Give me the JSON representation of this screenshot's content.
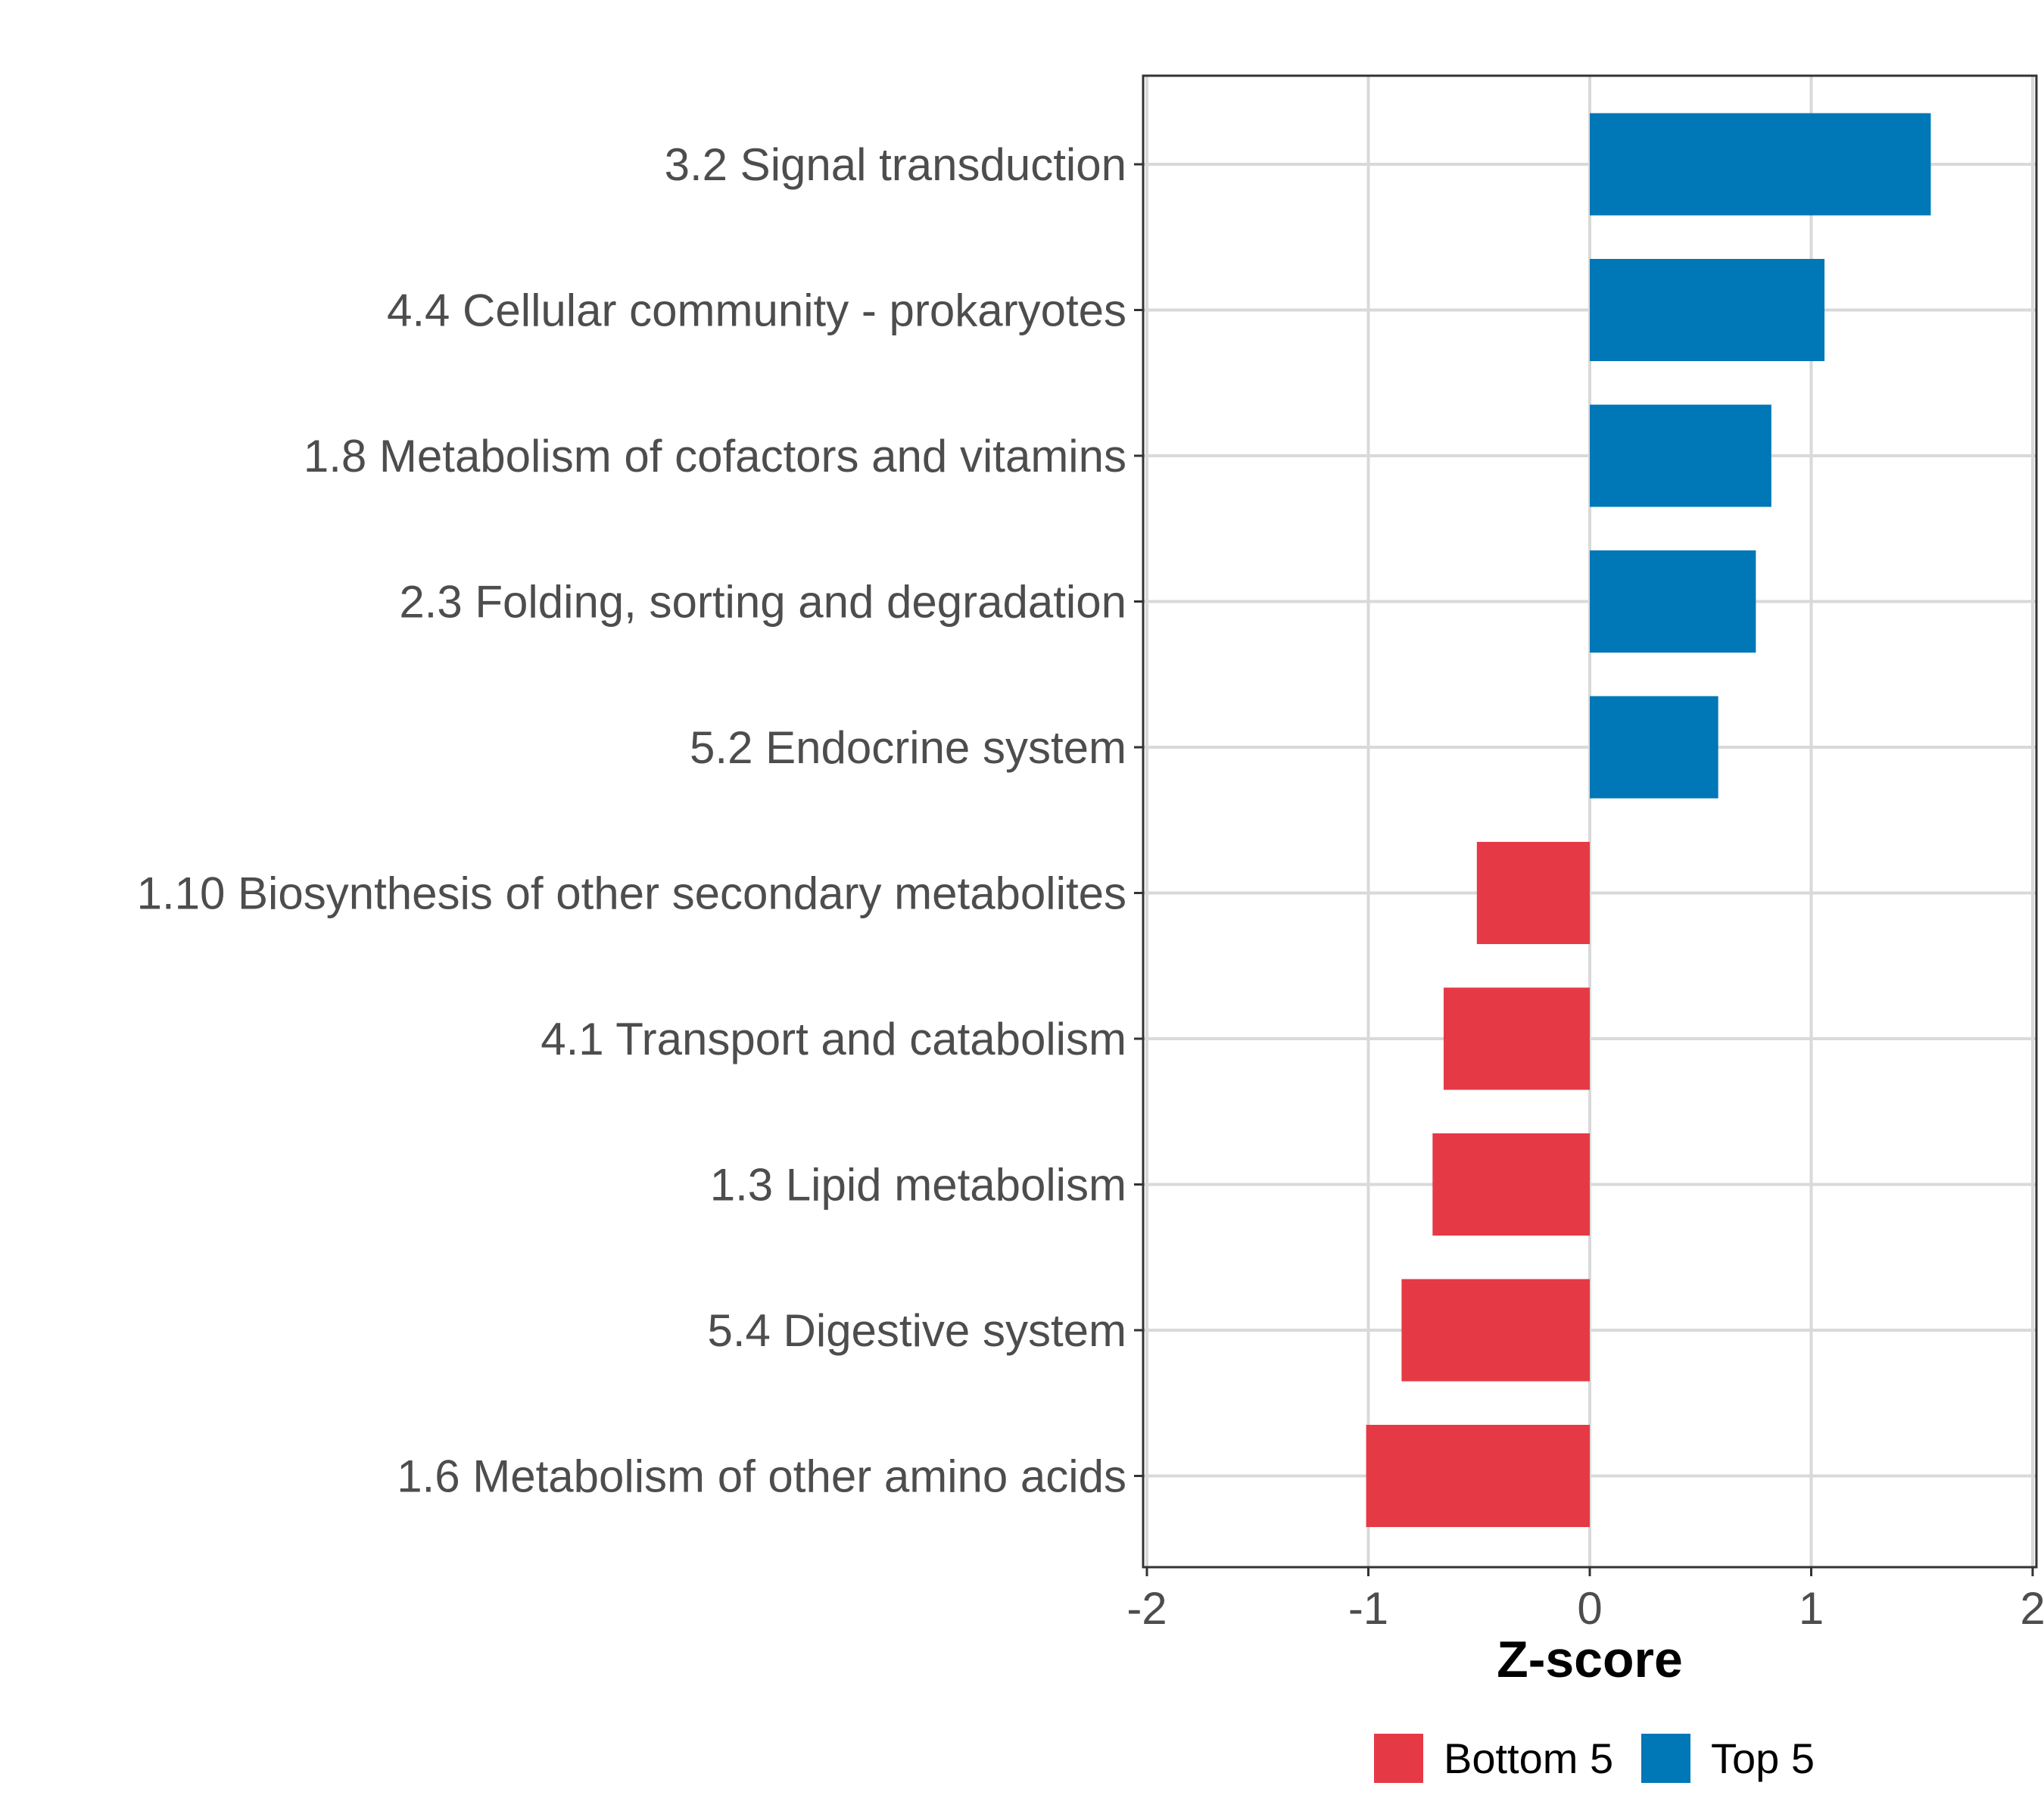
{
  "chart_data": {
    "type": "bar",
    "orientation": "horizontal",
    "title": "",
    "xlabel": "Z-score",
    "ylabel": "",
    "xlim": [
      -2,
      2
    ],
    "xticks": [
      "-2",
      "-1",
      "0",
      "1",
      "2"
    ],
    "grid": true,
    "categories": [
      "3.2 Signal transduction",
      "4.4 Cellular community - prokaryotes",
      "1.8 Metabolism of cofactors and vitamins",
      "2.3 Folding, sorting and degradation",
      "5.2 Endocrine system",
      "1.10 Biosynthesis of other secondary metabolites",
      "4.1 Transport and catabolism",
      "1.3 Lipid metabolism",
      "5.4 Digestive system",
      "1.6 Metabolism of other amino acids"
    ],
    "values": [
      1.54,
      1.06,
      0.82,
      0.75,
      0.58,
      -0.51,
      -0.66,
      -0.71,
      -0.85,
      -1.01
    ],
    "groups": [
      "Top 5",
      "Top 5",
      "Top 5",
      "Top 5",
      "Top 5",
      "Bottom 5",
      "Bottom 5",
      "Bottom 5",
      "Bottom 5",
      "Bottom 5"
    ],
    "legend": {
      "position": "bottom",
      "entries": [
        {
          "label": "Bottom 5",
          "color": "#e63946"
        },
        {
          "label": "Top 5",
          "color": "#0077b6"
        }
      ]
    }
  }
}
